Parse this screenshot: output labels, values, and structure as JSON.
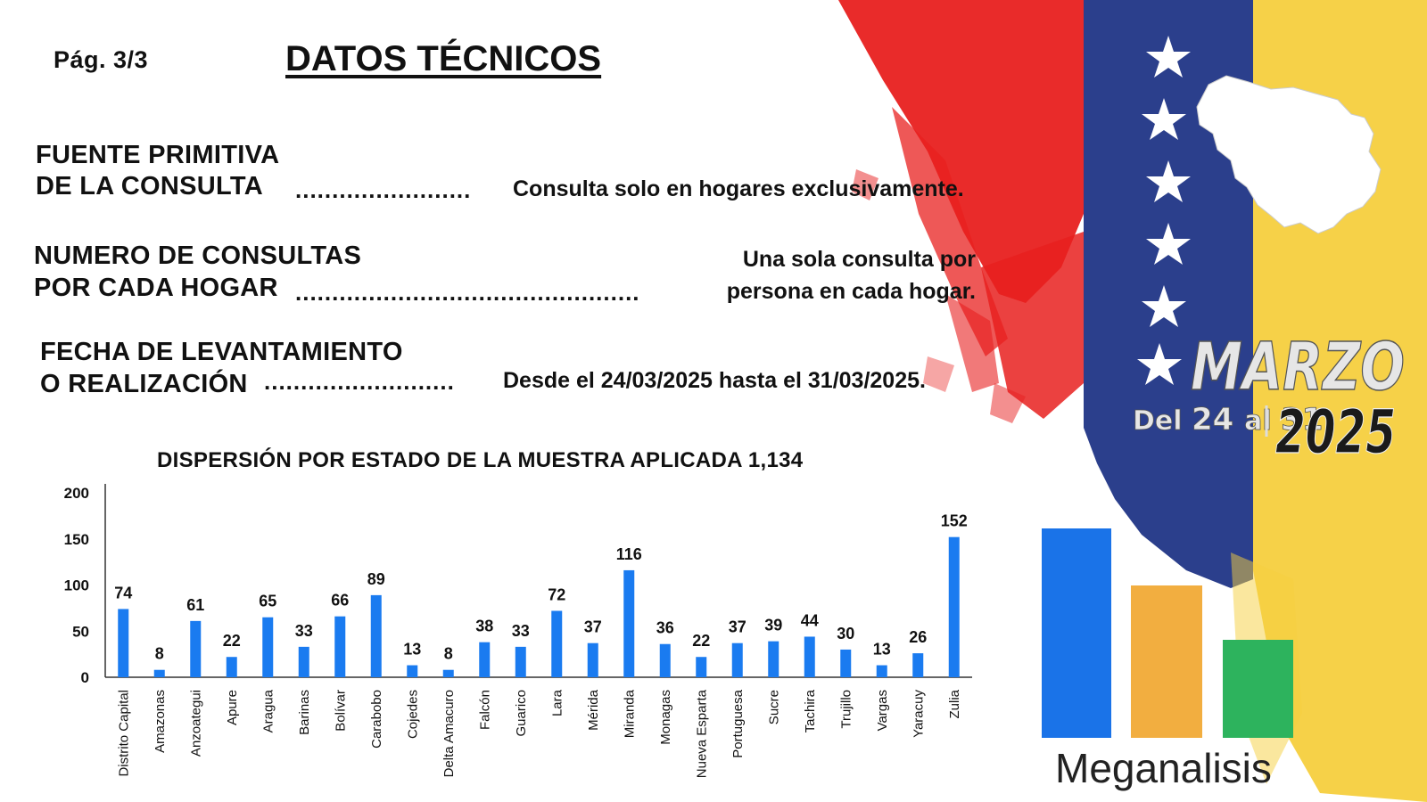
{
  "header": {
    "page": "Pág.  3/3",
    "title": "DATOS TÉCNICOS"
  },
  "fields": [
    {
      "label_1": "FUENTE PRIMITIVA",
      "label_2": "DE LA CONSULTA",
      "dots": "........................",
      "value_1": "",
      "value_2": "Consulta solo en hogares exclusivamente."
    },
    {
      "label_1": "NUMERO DE CONSULTAS",
      "label_2": "POR CADA HOGAR",
      "dots": "...............................................",
      "value_1": "Una sola consulta por",
      "value_2": "persona en cada hogar."
    },
    {
      "label_1": "FECHA DE LEVANTAMIENTO",
      "label_2": "O REALIZACIÓN",
      "dots": "..........................",
      "value_1": "",
      "value_2": "Desde el 24/03/2025 hasta el 31/03/2025."
    }
  ],
  "banner": {
    "month": "MARZO",
    "range_prefix": "Del",
    "day_start": "24",
    "range_mid": "al",
    "day_end": "31",
    "year": "2025"
  },
  "brand": {
    "name": "Meganalisis",
    "colors": [
      "#1a73e8",
      "#f2ae40",
      "#2db35d"
    ]
  },
  "colors": {
    "bar": "#1a7bf0",
    "flag_red": "#e8201f",
    "flag_blue": "#2b3f8c",
    "flag_yellow": "#f6cf3e"
  },
  "chart_data": {
    "type": "bar",
    "title": "DISPERSIÓN POR ESTADO DE LA MUESTRA APLICADA 1,134",
    "categories": [
      "Distrito Capital",
      "Amazonas",
      "Anzoategui",
      "Apure",
      "Aragua",
      "Barinas",
      "Bolívar",
      "Carabobo",
      "Cojedes",
      "Delta Amacuro",
      "Falcón",
      "Guarico",
      "Lara",
      "Mérida",
      "Miranda",
      "Monagas",
      "Nueva Esparta",
      "Portuguesa",
      "Sucre",
      "Tachira",
      "Trujillo",
      "Vargas",
      "Yaracuy",
      "Zulia"
    ],
    "values": [
      74,
      8,
      61,
      22,
      65,
      33,
      66,
      89,
      13,
      8,
      38,
      33,
      72,
      37,
      116,
      36,
      22,
      37,
      39,
      44,
      30,
      13,
      26,
      152
    ],
    "ylim": [
      0,
      200
    ],
    "yticks": [
      0,
      50,
      100,
      150,
      200
    ],
    "grid": false,
    "legend": "none"
  }
}
